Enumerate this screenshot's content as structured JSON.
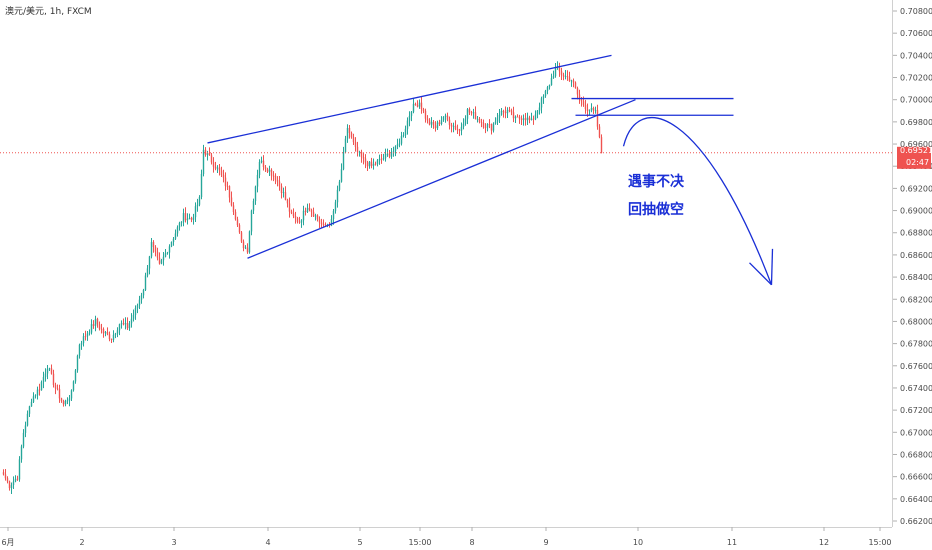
{
  "header": {
    "symbol": "澳元/美元",
    "interval": "1h",
    "source": "FXCM"
  },
  "colors": {
    "up": "#26a69a",
    "down": "#ef5350",
    "drawing": "#1a2fd6",
    "price_line": "#ef5350"
  },
  "price_badge": {
    "price": "0.69521",
    "countdown": "02:47"
  },
  "annotations": {
    "line1": "遇事不决",
    "line2": "回抽做空"
  },
  "chart_data": {
    "type": "candlestick",
    "x_tick_labels": [
      "6月",
      "2",
      "3",
      "4",
      "5",
      "15:00",
      "8",
      "9",
      "10",
      "11",
      "12",
      "15:00"
    ],
    "y_tick_labels": [
      "0.70800",
      "0.70600",
      "0.70400",
      "0.70200",
      "0.70000",
      "0.69800",
      "0.69600",
      "0.69400",
      "0.69200",
      "0.69000",
      "0.68800",
      "0.68600",
      "0.68400",
      "0.68200",
      "0.68000",
      "0.67800",
      "0.67600",
      "0.67400",
      "0.67200",
      "0.67000",
      "0.66800",
      "0.66600",
      "0.66400",
      "0.66200"
    ],
    "ylim": [
      0.6616,
      0.7092
    ],
    "last_price": 0.69521,
    "anchors": [
      [
        0,
        0.6662
      ],
      [
        3,
        0.6652
      ],
      [
        7,
        0.666
      ],
      [
        10,
        0.67
      ],
      [
        14,
        0.673
      ],
      [
        18,
        0.674
      ],
      [
        22,
        0.676
      ],
      [
        26,
        0.674
      ],
      [
        30,
        0.6725
      ],
      [
        34,
        0.6735
      ],
      [
        38,
        0.678
      ],
      [
        42,
        0.679
      ],
      [
        46,
        0.68
      ],
      [
        50,
        0.679
      ],
      [
        54,
        0.6785
      ],
      [
        58,
        0.6798
      ],
      [
        62,
        0.6795
      ],
      [
        66,
        0.681
      ],
      [
        70,
        0.683
      ],
      [
        74,
        0.687
      ],
      [
        78,
        0.685
      ],
      [
        82,
        0.6865
      ],
      [
        86,
        0.688
      ],
      [
        90,
        0.6895
      ],
      [
        94,
        0.6892
      ],
      [
        98,
        0.691
      ],
      [
        100,
        0.6955
      ],
      [
        104,
        0.6945
      ],
      [
        108,
        0.6935
      ],
      [
        112,
        0.692
      ],
      [
        116,
        0.6895
      ],
      [
        119,
        0.687
      ],
      [
        122,
        0.6865
      ],
      [
        124,
        0.69
      ],
      [
        128,
        0.6945
      ],
      [
        132,
        0.6938
      ],
      [
        136,
        0.693
      ],
      [
        140,
        0.6915
      ],
      [
        144,
        0.6895
      ],
      [
        148,
        0.689
      ],
      [
        152,
        0.6905
      ],
      [
        156,
        0.6895
      ],
      [
        160,
        0.6885
      ],
      [
        164,
        0.689
      ],
      [
        168,
        0.6925
      ],
      [
        172,
        0.6975
      ],
      [
        176,
        0.6955
      ],
      [
        180,
        0.6945
      ],
      [
        184,
        0.694
      ],
      [
        188,
        0.6945
      ],
      [
        192,
        0.695
      ],
      [
        196,
        0.6955
      ],
      [
        200,
        0.697
      ],
      [
        204,
        0.6992
      ],
      [
        208,
        0.6998
      ],
      [
        212,
        0.698
      ],
      [
        216,
        0.6975
      ],
      [
        220,
        0.6985
      ],
      [
        224,
        0.6978
      ],
      [
        228,
        0.6972
      ],
      [
        232,
        0.699
      ],
      [
        236,
        0.6985
      ],
      [
        240,
        0.6978
      ],
      [
        244,
        0.6975
      ],
      [
        248,
        0.6988
      ],
      [
        252,
        0.699
      ],
      [
        256,
        0.6982
      ],
      [
        260,
        0.6985
      ],
      [
        264,
        0.698
      ],
      [
        268,
        0.6995
      ],
      [
        272,
        0.701
      ],
      [
        276,
        0.7028
      ],
      [
        280,
        0.7022
      ],
      [
        284,
        0.7018
      ],
      [
        288,
        0.7
      ],
      [
        292,
        0.6992
      ],
      [
        296,
        0.6988
      ],
      [
        299,
        0.6952
      ]
    ],
    "drawings": {
      "wedge_upper": [
        [
          102,
          0.6961
        ],
        [
          304,
          0.704
        ]
      ],
      "wedge_lower": [
        [
          122,
          0.6857
        ],
        [
          316,
          0.7
        ]
      ],
      "resistance_zone": [
        0.6986,
        0.7001
      ],
      "projection_arrow": {
        "from": [
          310,
          0.6958
        ],
        "peak": [
          330,
          0.6985
        ],
        "to": [
          384,
          0.6833
        ]
      }
    }
  }
}
